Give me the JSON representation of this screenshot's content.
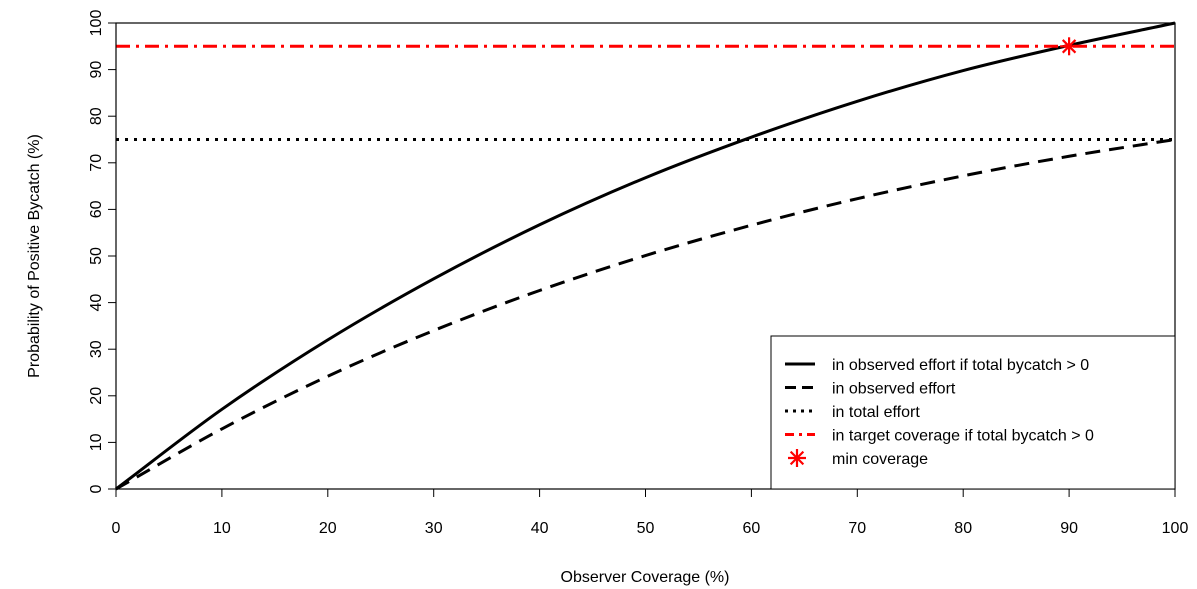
{
  "chart_data": {
    "type": "line",
    "title": "",
    "xlabel": "Observer Coverage (%)",
    "ylabel": "Probability of Positive Bycatch (%)",
    "xlim": [
      0,
      100
    ],
    "ylim": [
      0,
      100
    ],
    "x_ticks": [
      0,
      10,
      20,
      30,
      40,
      50,
      60,
      70,
      80,
      90,
      100
    ],
    "y_ticks": [
      0,
      10,
      20,
      30,
      40,
      50,
      60,
      70,
      80,
      90,
      100
    ],
    "grid": false,
    "legend_position": "bottom-right",
    "series": [
      {
        "name": "in observed effort if total bycatch > 0",
        "style": "solid",
        "color": "#000000",
        "x": [
          0,
          10,
          20,
          30,
          40,
          50,
          60,
          70,
          80,
          90,
          100
        ],
        "y": [
          0,
          17.1,
          32.0,
          45.1,
          56.7,
          66.8,
          75.5,
          83.2,
          89.8,
          95.2,
          100
        ]
      },
      {
        "name": "in observed effort",
        "style": "dashed",
        "color": "#000000",
        "x": [
          0,
          10,
          20,
          30,
          40,
          50,
          60,
          70,
          80,
          90,
          100
        ],
        "y": [
          0,
          12.9,
          24.2,
          34.0,
          42.6,
          50.1,
          56.6,
          62.3,
          67.2,
          71.4,
          75
        ]
      },
      {
        "name": "in total effort",
        "style": "dotted",
        "color": "#000000",
        "x": [
          0,
          100
        ],
        "y": [
          75,
          75
        ]
      },
      {
        "name": "in target coverage if total bycatch > 0",
        "style": "dashdot",
        "color": "#ff0000",
        "x": [
          0,
          100
        ],
        "y": [
          95,
          95
        ]
      }
    ],
    "points": [
      {
        "name": "min coverage",
        "marker": "asterisk",
        "color": "#ff0000",
        "x": 90,
        "y": 95
      }
    ]
  }
}
